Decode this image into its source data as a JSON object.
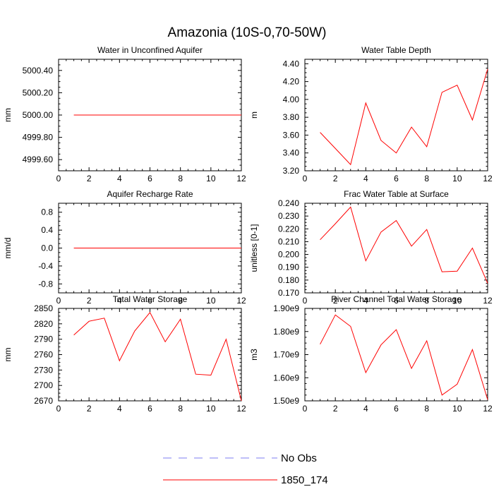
{
  "figure": {
    "title": "Amazonia (10S-0,70-50W)"
  },
  "colors": {
    "model": "#ff0000",
    "obs": "#7c7cf0",
    "axis": "#000000"
  },
  "legend": {
    "items": [
      {
        "label": "No Obs",
        "style": "dashed",
        "color": "#7c7cf0"
      },
      {
        "label": "1850_174",
        "style": "solid",
        "color": "#ff0000"
      }
    ]
  },
  "chart_data": [
    {
      "type": "line",
      "title": "Water in Unconfined Aquifer",
      "xlabel": "",
      "ylabel": "mm",
      "xlim": [
        0,
        12
      ],
      "ylim": [
        4999.5,
        5000.5
      ],
      "xticks": [
        0,
        2,
        4,
        6,
        8,
        10,
        12
      ],
      "xtick_labels": [
        "0",
        "2",
        "4",
        "6",
        "8",
        "10",
        "12"
      ],
      "yticks": [
        4999.6,
        4999.8,
        5000.0,
        5000.2,
        5000.4
      ],
      "ytick_labels": [
        "4999.60",
        "4999.80",
        "5000.00",
        "5000.20",
        "5000.40"
      ],
      "series": [
        {
          "name": "1850_174",
          "x": [
            1,
            2,
            3,
            4,
            5,
            6,
            7,
            8,
            9,
            10,
            11,
            12
          ],
          "values": [
            5000,
            5000,
            5000,
            5000,
            5000,
            5000,
            5000,
            5000,
            5000,
            5000,
            5000,
            5000
          ]
        }
      ]
    },
    {
      "type": "line",
      "title": "Water Table Depth",
      "xlabel": "",
      "ylabel": "m",
      "xlim": [
        0,
        12
      ],
      "ylim": [
        3.2,
        4.45
      ],
      "xticks": [
        0,
        2,
        4,
        6,
        8,
        10,
        12
      ],
      "xtick_labels": [
        "0",
        "2",
        "4",
        "6",
        "8",
        "10",
        "12"
      ],
      "yticks": [
        3.2,
        3.4,
        3.6,
        3.8,
        4.0,
        4.2,
        4.4
      ],
      "ytick_labels": [
        "3.20",
        "3.40",
        "3.60",
        "3.80",
        "4.00",
        "4.20",
        "4.40"
      ],
      "series": [
        {
          "name": "1850_174",
          "x": [
            1,
            2,
            3,
            4,
            5,
            6,
            7,
            8,
            9,
            10,
            11,
            12
          ],
          "values": [
            3.63,
            3.45,
            3.27,
            3.96,
            3.54,
            3.4,
            3.69,
            3.47,
            4.08,
            4.16,
            3.77,
            4.34
          ]
        }
      ]
    },
    {
      "type": "line",
      "title": "Aquifer Recharge Rate",
      "xlabel": "",
      "ylabel": "mm/d",
      "xlim": [
        0,
        12
      ],
      "ylim": [
        -1.0,
        1.0
      ],
      "xticks": [
        0,
        2,
        4,
        6,
        8,
        10,
        12
      ],
      "xtick_labels": [
        "0",
        "2",
        "4",
        "6",
        "8",
        "10",
        "12"
      ],
      "yticks": [
        -0.8,
        -0.4,
        0.0,
        0.4,
        0.8
      ],
      "ytick_labels": [
        "-0.8",
        "-0.4",
        "0.0",
        "0.4",
        "0.8"
      ],
      "series": [
        {
          "name": "1850_174",
          "x": [
            1,
            2,
            3,
            4,
            5,
            6,
            7,
            8,
            9,
            10,
            11,
            12
          ],
          "values": [
            0,
            0,
            0,
            0,
            0,
            0,
            0,
            0,
            0,
            0,
            0,
            0
          ]
        }
      ]
    },
    {
      "type": "line",
      "title": "Frac Water Table at Surface",
      "xlabel": "",
      "ylabel": "unitless [0-1]",
      "xlim": [
        0,
        12
      ],
      "ylim": [
        0.17,
        0.24
      ],
      "xticks": [
        0,
        2,
        4,
        6,
        8,
        10,
        12
      ],
      "xtick_labels": [
        "0",
        "2",
        "4",
        "6",
        "8",
        "10",
        "12"
      ],
      "yticks": [
        0.17,
        0.18,
        0.19,
        0.2,
        0.21,
        0.22,
        0.23,
        0.24
      ],
      "ytick_labels": [
        "0.170",
        "0.180",
        "0.190",
        "0.200",
        "0.210",
        "0.220",
        "0.230",
        "0.240"
      ],
      "series": [
        {
          "name": "1850_174",
          "x": [
            1,
            2,
            3,
            4,
            5,
            6,
            7,
            8,
            9,
            10,
            11,
            12
          ],
          "values": [
            0.2115,
            0.224,
            0.237,
            0.195,
            0.2175,
            0.2265,
            0.2065,
            0.2195,
            0.1865,
            0.187,
            0.205,
            0.1775
          ]
        }
      ]
    },
    {
      "type": "line",
      "title": "Total Water Storage",
      "xlabel": "",
      "ylabel": "mm",
      "xlim": [
        0,
        12
      ],
      "ylim": [
        2670,
        2850
      ],
      "xticks": [
        0,
        2,
        4,
        6,
        8,
        10,
        12
      ],
      "xtick_labels": [
        "0",
        "2",
        "4",
        "6",
        "8",
        "10",
        "12"
      ],
      "yticks": [
        2670,
        2700,
        2730,
        2760,
        2790,
        2820,
        2850
      ],
      "ytick_labels": [
        "2670",
        "2700",
        "2730",
        "2760",
        "2790",
        "2820",
        "2850"
      ],
      "series": [
        {
          "name": "1850_174",
          "x": [
            1,
            2,
            3,
            4,
            5,
            6,
            7,
            8,
            9,
            10,
            11,
            12
          ],
          "values": [
            2798,
            2825,
            2831,
            2748,
            2806,
            2842,
            2785,
            2829,
            2722,
            2720,
            2790,
            2670
          ]
        }
      ]
    },
    {
      "type": "line",
      "title": "River Channel Total Water Storage",
      "xlabel": "",
      "ylabel": "m3",
      "xlim": [
        0,
        12
      ],
      "ylim": [
        1500000000.0,
        1900000000.0
      ],
      "xticks": [
        0,
        2,
        4,
        6,
        8,
        10,
        12
      ],
      "xtick_labels": [
        "0",
        "2",
        "4",
        "6",
        "8",
        "10",
        "12"
      ],
      "yticks": [
        1500000000.0,
        1600000000.0,
        1700000000.0,
        1800000000.0,
        1900000000.0
      ],
      "ytick_labels": [
        "1.50e9",
        "1.60e9",
        "1.70e9",
        "1.80e9",
        "1.90e9"
      ],
      "series": [
        {
          "name": "1850_174",
          "x": [
            1,
            2,
            3,
            4,
            5,
            6,
            7,
            8,
            9,
            10,
            11,
            12
          ],
          "values": [
            1745000000.0,
            1872000000.0,
            1822000000.0,
            1622000000.0,
            1742000000.0,
            1808000000.0,
            1640000000.0,
            1760000000.0,
            1525000000.0,
            1572000000.0,
            1722000000.0,
            1505000000.0
          ]
        }
      ]
    }
  ]
}
